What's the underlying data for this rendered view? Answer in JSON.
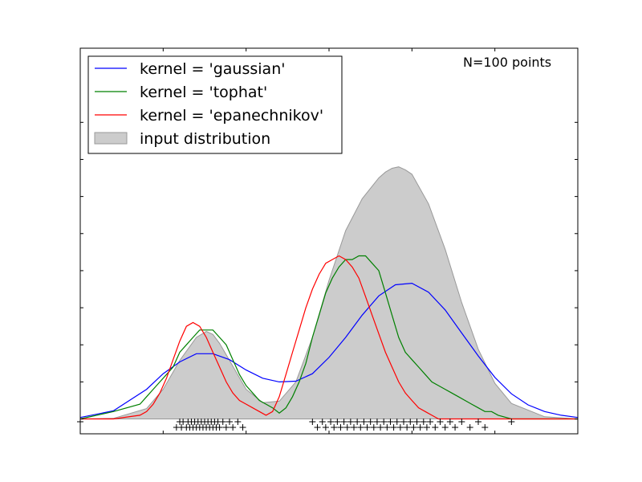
{
  "chart_data": {
    "type": "line",
    "title": "",
    "xlabel": "",
    "ylabel": "",
    "xlim": [
      -5,
      10
    ],
    "ylim": [
      -0.02,
      0.5
    ],
    "x_ticks": [
      -5,
      -2.5,
      0,
      2.5,
      5,
      7.5,
      10
    ],
    "y_ticks": [
      0,
      0.05,
      0.1,
      0.15,
      0.2,
      0.25,
      0.3,
      0.35,
      0.4
    ],
    "tick_labels_shown": false,
    "grid": false,
    "legend_position": "upper left",
    "annotation": "N=100 points",
    "series": [
      {
        "name": "kernel = 'gaussian'",
        "color": "#0000ff",
        "x": [
          -5.0,
          -4.0,
          -3.0,
          -2.5,
          -2.0,
          -1.5,
          -1.0,
          -0.5,
          0.0,
          0.5,
          1.0,
          1.5,
          2.0,
          2.5,
          3.0,
          3.5,
          4.0,
          4.5,
          5.0,
          5.5,
          6.0,
          6.5,
          7.0,
          7.5,
          8.0,
          8.5,
          9.0,
          9.5,
          10.0
        ],
        "y": [
          0.002,
          0.011,
          0.04,
          0.061,
          0.077,
          0.088,
          0.088,
          0.08,
          0.066,
          0.055,
          0.05,
          0.051,
          0.061,
          0.083,
          0.11,
          0.14,
          0.166,
          0.181,
          0.183,
          0.171,
          0.147,
          0.116,
          0.085,
          0.056,
          0.034,
          0.019,
          0.01,
          0.005,
          0.002
        ]
      },
      {
        "name": "kernel = 'tophat'",
        "color": "#008000",
        "x": [
          -5.0,
          -4.0,
          -3.2,
          -3.0,
          -2.8,
          -2.6,
          -2.4,
          -2.2,
          -2.0,
          -1.8,
          -1.6,
          -1.4,
          -1.2,
          -1.0,
          -0.8,
          -0.6,
          -0.4,
          -0.2,
          0.0,
          0.2,
          0.4,
          0.6,
          0.8,
          1.0,
          1.2,
          1.4,
          1.6,
          1.8,
          2.0,
          2.2,
          2.4,
          2.6,
          2.8,
          3.0,
          3.2,
          3.4,
          3.6,
          3.8,
          4.0,
          4.2,
          4.4,
          4.6,
          4.8,
          5.0,
          5.2,
          5.4,
          5.6,
          5.8,
          6.0,
          6.2,
          6.4,
          6.6,
          6.8,
          7.0,
          7.2,
          7.4,
          7.6,
          8.0,
          8.5,
          10.0
        ],
        "y": [
          0.0,
          0.01,
          0.02,
          0.03,
          0.04,
          0.05,
          0.06,
          0.07,
          0.09,
          0.1,
          0.11,
          0.12,
          0.12,
          0.12,
          0.11,
          0.1,
          0.08,
          0.06,
          0.045,
          0.035,
          0.025,
          0.02,
          0.015,
          0.008,
          0.015,
          0.03,
          0.05,
          0.075,
          0.11,
          0.14,
          0.17,
          0.19,
          0.205,
          0.215,
          0.215,
          0.22,
          0.22,
          0.21,
          0.2,
          0.17,
          0.14,
          0.11,
          0.09,
          0.08,
          0.07,
          0.06,
          0.05,
          0.045,
          0.04,
          0.035,
          0.03,
          0.025,
          0.02,
          0.015,
          0.01,
          0.01,
          0.005,
          0.0,
          0.0,
          0.0
        ]
      },
      {
        "name": "kernel = 'epanechnikov'",
        "color": "#ff0000",
        "x": [
          -5.0,
          -4.0,
          -3.2,
          -3.0,
          -2.8,
          -2.6,
          -2.4,
          -2.2,
          -2.0,
          -1.8,
          -1.6,
          -1.4,
          -1.2,
          -1.0,
          -0.8,
          -0.6,
          -0.4,
          -0.2,
          0.0,
          0.2,
          0.4,
          0.6,
          0.8,
          1.0,
          1.2,
          1.4,
          1.6,
          1.8,
          2.0,
          2.2,
          2.4,
          2.6,
          2.8,
          3.0,
          3.2,
          3.4,
          3.6,
          3.8,
          4.0,
          4.2,
          4.4,
          4.6,
          4.8,
          5.0,
          5.2,
          5.4,
          5.6,
          5.8,
          6.0,
          6.2,
          6.4,
          6.6,
          6.8,
          7.0,
          7.2,
          7.4,
          7.6,
          8.0,
          8.5,
          10.0
        ],
        "y": [
          0.0,
          0.0,
          0.005,
          0.01,
          0.02,
          0.035,
          0.055,
          0.08,
          0.105,
          0.125,
          0.13,
          0.125,
          0.11,
          0.09,
          0.07,
          0.05,
          0.035,
          0.025,
          0.02,
          0.015,
          0.01,
          0.005,
          0.01,
          0.03,
          0.06,
          0.09,
          0.12,
          0.15,
          0.175,
          0.195,
          0.21,
          0.215,
          0.22,
          0.215,
          0.205,
          0.19,
          0.165,
          0.14,
          0.115,
          0.09,
          0.07,
          0.05,
          0.035,
          0.025,
          0.015,
          0.01,
          0.005,
          0.0,
          0.0,
          0.0,
          0.0,
          0.0,
          0.0,
          0.0,
          0.0,
          0.0,
          0.0,
          0.0,
          0.0,
          0.0
        ]
      },
      {
        "name": "input distribution",
        "type": "area",
        "color": "#cccccc",
        "x": [
          -5.0,
          -4.0,
          -3.0,
          -2.5,
          -2.0,
          -1.5,
          -1.2,
          -1.0,
          -0.8,
          -0.5,
          0.0,
          0.5,
          1.0,
          1.5,
          2.0,
          2.5,
          3.0,
          3.5,
          4.0,
          4.2,
          4.4,
          4.6,
          4.8,
          5.0,
          5.5,
          6.0,
          6.5,
          7.0,
          7.5,
          8.0,
          9.0,
          10.0
        ],
        "y": [
          0.0,
          0.0008,
          0.014,
          0.04,
          0.079,
          0.11,
          0.118,
          0.114,
          0.102,
          0.079,
          0.04,
          0.022,
          0.024,
          0.05,
          0.11,
          0.187,
          0.254,
          0.297,
          0.325,
          0.333,
          0.338,
          0.34,
          0.336,
          0.33,
          0.29,
          0.229,
          0.157,
          0.094,
          0.048,
          0.021,
          0.003,
          0.0
        ]
      }
    ],
    "samples_marker": "+",
    "samples": [
      -5.0,
      -2.1,
      -2.0,
      -1.95,
      -1.9,
      -1.8,
      -1.75,
      -1.7,
      -1.65,
      -1.6,
      -1.55,
      -1.5,
      -1.45,
      -1.4,
      -1.35,
      -1.3,
      -1.25,
      -1.2,
      -1.15,
      -1.1,
      -1.05,
      -1.0,
      -0.95,
      -0.9,
      -0.85,
      -0.8,
      -0.7,
      -0.6,
      -0.5,
      -0.4,
      -0.25,
      -0.1,
      2.0,
      2.15,
      2.3,
      2.4,
      2.55,
      2.65,
      2.75,
      2.85,
      2.95,
      3.05,
      3.15,
      3.25,
      3.35,
      3.45,
      3.55,
      3.65,
      3.75,
      3.85,
      3.95,
      4.05,
      4.15,
      4.25,
      4.35,
      4.45,
      4.55,
      4.65,
      4.75,
      4.85,
      4.95,
      5.05,
      5.15,
      5.25,
      5.35,
      5.45,
      5.55,
      5.7,
      5.85,
      6.0,
      6.15,
      6.3,
      6.5,
      6.75,
      7.0,
      7.2,
      8.0
    ]
  }
}
